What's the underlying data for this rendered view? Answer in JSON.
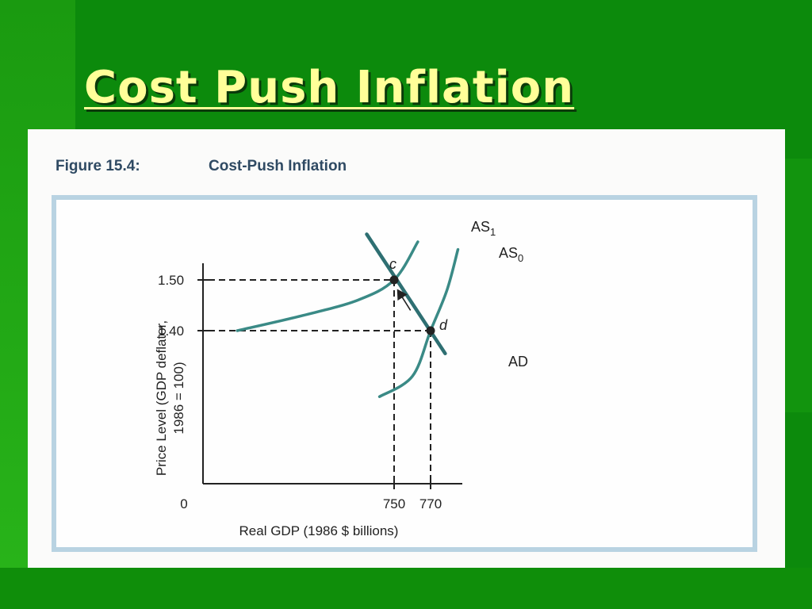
{
  "slide": {
    "title": "Cost Push Inflation",
    "colors": {
      "background": "#0c8a0c",
      "title": "#ffff99",
      "curves": "#3a8a86",
      "ad_line": "#2e6f72"
    }
  },
  "figure": {
    "label": "Figure 15.4:",
    "title": "Cost-Push Inflation"
  },
  "chart_data": {
    "type": "line",
    "xlabel": "Real GDP (1986 $ billions)",
    "ylabel": "Price Level (GDP deflator, 1986 = 100)",
    "ylabel_lines": [
      "Price Level (GDP deflator,",
      "1986 = 100)"
    ],
    "x_ticks": [
      "0",
      "750",
      "770"
    ],
    "y_ticks": [
      "1.50",
      "1.40"
    ],
    "grid": false,
    "series": [
      {
        "name": "AS1",
        "label_main": "AS",
        "label_sub": "1",
        "points": [
          [
            664,
            1.4
          ],
          [
            700,
            1.43
          ],
          [
            730,
            1.46
          ],
          [
            750,
            1.5
          ],
          [
            763,
            1.575
          ]
        ]
      },
      {
        "name": "AS0",
        "label_main": "AS",
        "label_sub": "0",
        "points": [
          [
            742,
            1.27
          ],
          [
            760,
            1.31
          ],
          [
            770,
            1.4
          ],
          [
            779,
            1.48
          ],
          [
            785,
            1.56
          ]
        ]
      },
      {
        "name": "AD",
        "label_main": "AD",
        "label_sub": "",
        "points": [
          [
            735,
            1.59
          ],
          [
            750,
            1.5
          ],
          [
            770,
            1.4
          ],
          [
            778,
            1.355
          ]
        ]
      }
    ],
    "equilibria": [
      {
        "label": "c",
        "x": 750,
        "y": 1.5
      },
      {
        "label": "d",
        "x": 770,
        "y": 1.4
      }
    ],
    "shift_arrow": {
      "from": [
        759,
        1.44
      ],
      "to": [
        752,
        1.48
      ]
    }
  }
}
